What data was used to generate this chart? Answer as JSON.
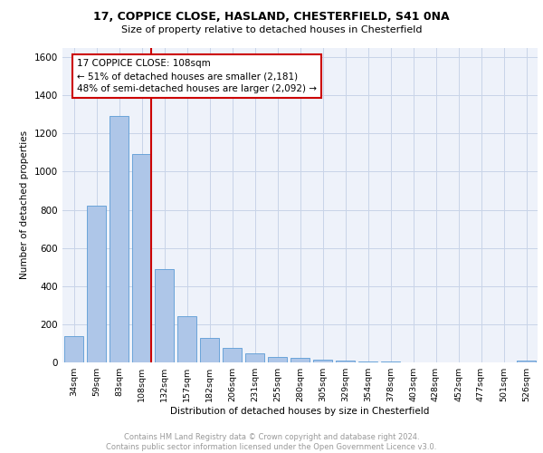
{
  "title1": "17, COPPICE CLOSE, HASLAND, CHESTERFIELD, S41 0NA",
  "title2": "Size of property relative to detached houses in Chesterfield",
  "xlabel": "Distribution of detached houses by size in Chesterfield",
  "ylabel": "Number of detached properties",
  "categories": [
    "34sqm",
    "59sqm",
    "83sqm",
    "108sqm",
    "132sqm",
    "157sqm",
    "182sqm",
    "206sqm",
    "231sqm",
    "255sqm",
    "280sqm",
    "305sqm",
    "329sqm",
    "354sqm",
    "378sqm",
    "403sqm",
    "428sqm",
    "452sqm",
    "477sqm",
    "501sqm",
    "526sqm"
  ],
  "values": [
    140,
    820,
    1290,
    1090,
    490,
    240,
    130,
    75,
    47,
    30,
    22,
    13,
    8,
    5,
    3,
    2,
    1,
    0,
    0,
    0,
    10
  ],
  "bar_color": "#aec6e8",
  "bar_edge_color": "#5b9bd5",
  "vline_x_index": 3,
  "vline_color": "#cc0000",
  "annotation_text": "17 COPPICE CLOSE: 108sqm\n← 51% of detached houses are smaller (2,181)\n48% of semi-detached houses are larger (2,092) →",
  "annotation_box_color": "#cc0000",
  "ylim": [
    0,
    1650
  ],
  "yticks": [
    0,
    200,
    400,
    600,
    800,
    1000,
    1200,
    1400,
    1600
  ],
  "grid_color": "#c8d4e8",
  "footer": "Contains HM Land Registry data © Crown copyright and database right 2024.\nContains public sector information licensed under the Open Government Licence v3.0.",
  "bg_color": "#eef2fa"
}
